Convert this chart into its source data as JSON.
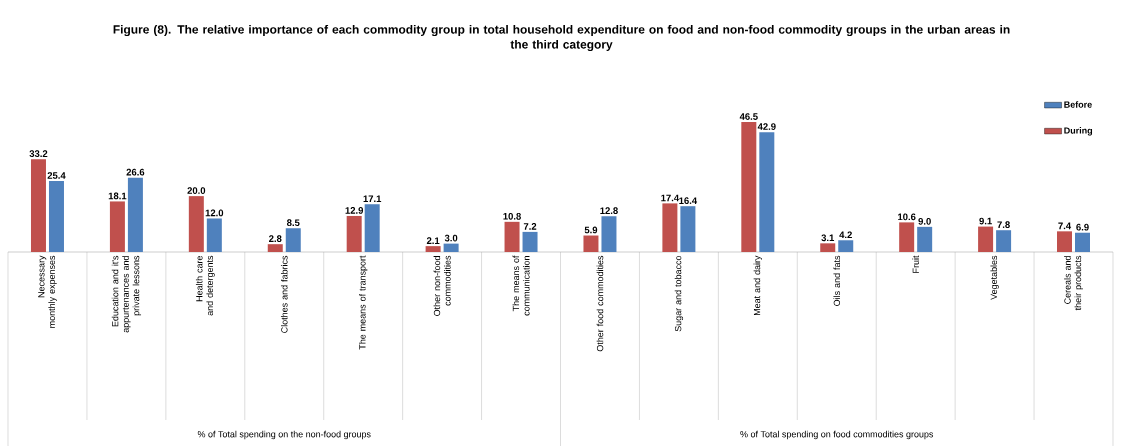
{
  "chart_data": {
    "type": "bar",
    "title": "Figure (8). The relative importance of each commodity group in total household expenditure on food and non-food commodity groups in the urban areas in the third category",
    "categories": [
      "Necessary monthly expenses",
      "Education and it's appurtenances and private lessons",
      "Health care and detergents",
      "Clothes and fabrics",
      "The means of transport",
      "Other non-food commodities",
      "The means of communication",
      "Other food commodities",
      "Sugar and tobacco",
      "Meat and dairy",
      "Oils and fats",
      "Fruit",
      "Vegetables",
      "Cereals and their products"
    ],
    "series": [
      {
        "name": "During",
        "color": "#c0504d",
        "values": [
          33.2,
          18.1,
          20.0,
          2.8,
          12.9,
          2.1,
          10.8,
          5.9,
          17.4,
          46.5,
          3.1,
          10.6,
          9.1,
          7.4
        ],
        "value_labels": [
          "33.2",
          "18.1",
          "20.0",
          "2.8",
          "12.9",
          "2.1",
          "10.8",
          "5.9",
          "17.4",
          "46.5",
          "3.1",
          "10.6",
          "9.1",
          "7.4"
        ]
      },
      {
        "name": "Before",
        "color": "#4f81bd",
        "values": [
          25.4,
          26.6,
          12.0,
          8.5,
          17.1,
          3.0,
          7.2,
          12.8,
          16.4,
          42.9,
          4.2,
          9.0,
          7.8,
          6.9
        ],
        "value_labels": [
          "25.4",
          "26.6",
          "12.0",
          "8.5",
          "17.1",
          "3.0",
          "7.2",
          "12.8",
          "16.4",
          "42.9",
          "4.2",
          "9.0",
          "7.8",
          "6.9"
        ]
      }
    ],
    "annotations": [
      "% of Total spending on the non-food groups",
      "% of Total spending on food commodities groups"
    ],
    "legend": "top right"
  }
}
